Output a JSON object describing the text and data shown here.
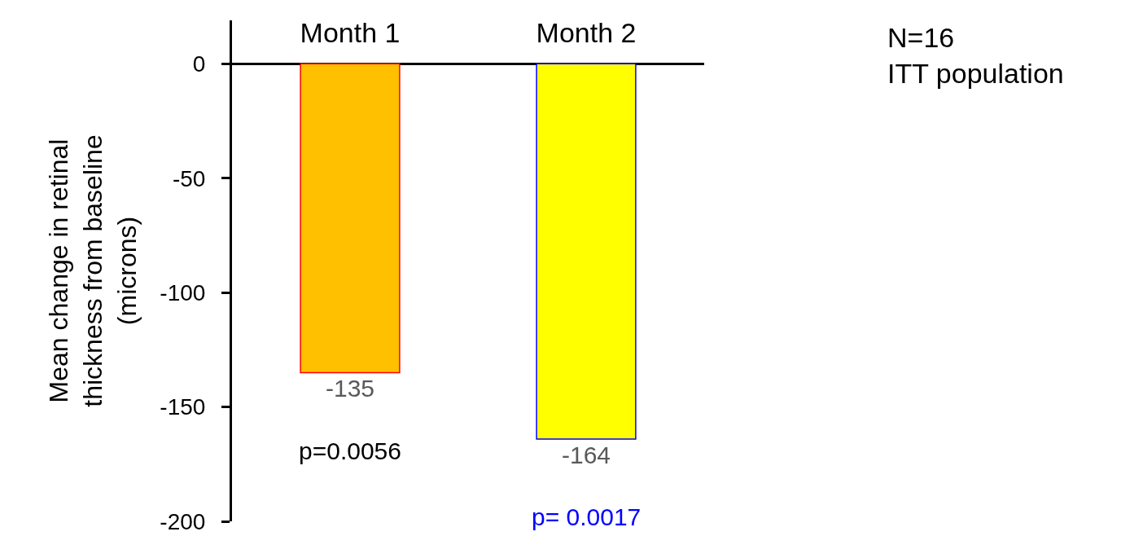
{
  "chart_data": {
    "type": "bar",
    "categories": [
      "Month 1",
      "Month 2"
    ],
    "values": [
      -135,
      -164
    ],
    "colors": [
      "#ffc000",
      "#ffff00"
    ],
    "value_labels": [
      "-135",
      "-164"
    ],
    "ylabel": "Mean change in retinal\nthickness from baseline\n(microns)",
    "ylim": [
      -200,
      19
    ],
    "yticks": [
      0,
      -50,
      -100,
      -150,
      -200
    ],
    "grid": false,
    "legend": false,
    "annotations": [
      "p=0.0056",
      "p= 0.0017",
      "N=16\nITT population"
    ]
  }
}
